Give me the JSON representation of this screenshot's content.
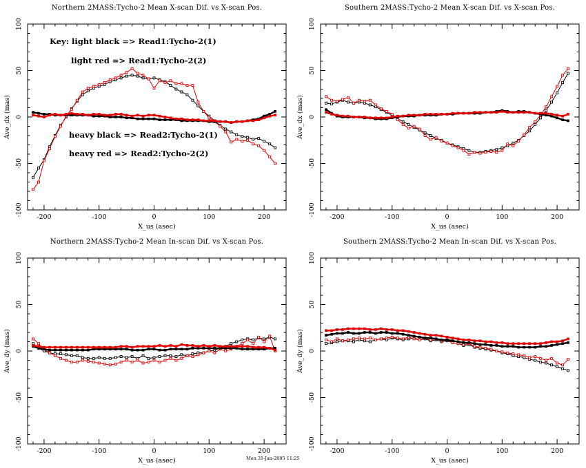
{
  "page": {
    "background": "#ffffff"
  },
  "footer": {
    "timestamp": "Mon 31-Jan-2005 11:25"
  },
  "style": {
    "black": "#000000",
    "red": "#e00000"
  },
  "chart_data": [
    {
      "type": "line",
      "title": "Northern 2MASS:Tycho-2 Mean X-scan Dif. vs X-scan Pos.",
      "xlabel": "X_us (asec)",
      "ylabel": "Ave_dx (mas)",
      "xlim": [
        -230,
        240
      ],
      "ylim": [
        -100,
        100
      ],
      "xticks": [
        -200,
        -100,
        0,
        100,
        200
      ],
      "yticks": [
        -100,
        -50,
        0,
        50,
        100
      ],
      "x_minor_step": 20,
      "y_minor_step": 10,
      "grid": false,
      "x": [
        -220,
        -210,
        -200,
        -190,
        -180,
        -170,
        -160,
        -150,
        -140,
        -130,
        -120,
        -110,
        -100,
        -90,
        -80,
        -70,
        -60,
        -50,
        -40,
        -30,
        -20,
        -10,
        0,
        10,
        20,
        30,
        40,
        50,
        60,
        70,
        80,
        90,
        100,
        110,
        120,
        130,
        140,
        150,
        160,
        170,
        180,
        190,
        200,
        210,
        220
      ],
      "series": [
        {
          "name": "Read1:Tycho-2(1)",
          "legend": "light black",
          "color": "#000000",
          "weight": "light",
          "values": [
            -65,
            -55,
            -46,
            -32,
            -20,
            -9,
            0,
            9,
            17,
            24,
            28,
            31,
            33,
            35,
            38,
            40,
            42,
            44,
            45,
            44,
            42,
            41,
            42,
            40,
            38,
            34,
            30,
            27,
            24,
            18,
            12,
            6,
            1,
            -4,
            -9,
            -13,
            -16,
            -19,
            -21,
            -22,
            -24,
            -23,
            -26,
            -29,
            -33
          ]
        },
        {
          "name": "Read1:Tycho-2(2)",
          "legend": "light red",
          "color": "#e00000",
          "weight": "light",
          "values": [
            -78,
            -70,
            -47,
            -34,
            -21,
            -10,
            1,
            8,
            18,
            27,
            31,
            33,
            35,
            37,
            40,
            42,
            45,
            48,
            52,
            47,
            45,
            41,
            31,
            39,
            37,
            39,
            36,
            36,
            34,
            34,
            16,
            6,
            -1,
            -5,
            -10,
            -16,
            -27,
            -24,
            -26,
            -25,
            -29,
            -31,
            -36,
            -43,
            -50
          ]
        },
        {
          "name": "Read2:Tycho-2(1)",
          "legend": "heavy black",
          "color": "#000000",
          "weight": "heavy",
          "values": [
            5,
            4,
            3,
            3,
            2,
            2,
            2,
            2,
            2,
            2,
            2,
            1,
            1,
            1,
            0,
            0,
            0,
            -1,
            -1,
            -2,
            -2,
            -2,
            -2,
            -3,
            -3,
            -3,
            -3,
            -4,
            -4,
            -4,
            -4,
            -4,
            -5,
            -5,
            -5,
            -5,
            -6,
            -5,
            -5,
            -4,
            -3,
            -2,
            1,
            3,
            6
          ]
        },
        {
          "name": "Read2:Tycho-2(2)",
          "legend": "heavy red",
          "color": "#e00000",
          "weight": "heavy",
          "values": [
            2,
            1,
            0,
            2,
            3,
            2,
            3,
            4,
            3,
            3,
            2,
            3,
            3,
            2,
            2,
            3,
            3,
            2,
            1,
            2,
            1,
            2,
            2,
            1,
            0,
            -1,
            -2,
            -2,
            -3,
            -3,
            -3,
            -4,
            -4,
            -4,
            -5,
            -5,
            -6,
            -5,
            -5,
            -4,
            -4,
            -3,
            -1,
            1,
            2
          ]
        }
      ],
      "key_lines": [
        {
          "text": "Key: light black => Read1:Tycho-2(1)",
          "x": 72,
          "y": 64
        },
        {
          "text": "light red => Read1:Tycho-2(2)",
          "x": 103,
          "y": 92
        },
        {
          "text": "heavy black => Read2:Tycho-2(1)",
          "x": 100,
          "y": 200
        },
        {
          "text": "heavy red => Read2:Tycho-2(2)",
          "x": 100,
          "y": 227
        }
      ]
    },
    {
      "type": "line",
      "title": "Southern 2MASS:Tycho-2 Mean X-scan Dif. vs X-scan Pos.",
      "xlabel": "X_us (asec)",
      "ylabel": "Ave_dx (mas)",
      "xlim": [
        -230,
        240
      ],
      "ylim": [
        -100,
        100
      ],
      "xticks": [
        -200,
        -100,
        0,
        100,
        200
      ],
      "yticks": [
        -100,
        -50,
        0,
        50,
        100
      ],
      "x_minor_step": 20,
      "y_minor_step": 10,
      "grid": false,
      "x": [
        -220,
        -210,
        -200,
        -190,
        -180,
        -170,
        -160,
        -150,
        -140,
        -130,
        -120,
        -110,
        -100,
        -90,
        -80,
        -70,
        -60,
        -50,
        -40,
        -30,
        -20,
        -10,
        0,
        10,
        20,
        30,
        40,
        50,
        60,
        70,
        80,
        90,
        100,
        110,
        120,
        130,
        140,
        150,
        160,
        170,
        180,
        190,
        200,
        210,
        220
      ],
      "series": [
        {
          "name": "Read1:Tycho-2(1)",
          "legend": "light black",
          "color": "#000000",
          "weight": "light",
          "values": [
            15,
            14,
            16,
            18,
            16,
            15,
            16,
            15,
            13,
            11,
            8,
            5,
            2,
            -2,
            -5,
            -8,
            -11,
            -14,
            -17,
            -20,
            -23,
            -25,
            -28,
            -30,
            -32,
            -34,
            -36,
            -38,
            -38,
            -37,
            -36,
            -35,
            -33,
            -31,
            -28,
            -25,
            -20,
            -15,
            -8,
            -1,
            7,
            16,
            26,
            37,
            47
          ]
        },
        {
          "name": "Read1:Tycho-2(2)",
          "legend": "light red",
          "color": "#e00000",
          "weight": "light",
          "values": [
            22,
            18,
            17,
            19,
            21,
            15,
            18,
            17,
            18,
            13,
            9,
            6,
            3,
            -3,
            -8,
            -12,
            -10,
            -13,
            -20,
            -24,
            -22,
            -26,
            -28,
            -31,
            -33,
            -36,
            -40,
            -38,
            -39,
            -38,
            -37,
            -38,
            -36,
            -29,
            -31,
            -26,
            -19,
            -11,
            -5,
            2,
            11,
            22,
            33,
            45,
            52
          ]
        },
        {
          "name": "Read2:Tycho-2(1)",
          "legend": "heavy black",
          "color": "#000000",
          "weight": "heavy",
          "values": [
            8,
            4,
            1,
            0,
            0,
            0,
            0,
            -1,
            -1,
            -2,
            -2,
            -2,
            -1,
            0,
            1,
            1,
            1,
            2,
            2,
            2,
            2,
            3,
            3,
            3,
            4,
            4,
            4,
            4,
            4,
            5,
            5,
            6,
            7,
            6,
            5,
            6,
            6,
            5,
            4,
            3,
            2,
            1,
            -1,
            -3,
            -4
          ]
        },
        {
          "name": "Read2:Tycho-2(2)",
          "legend": "heavy red",
          "color": "#e00000",
          "weight": "heavy",
          "values": [
            5,
            3,
            2,
            1,
            1,
            0,
            0,
            0,
            -1,
            -1,
            -1,
            -1,
            0,
            1,
            1,
            2,
            2,
            2,
            3,
            3,
            3,
            3,
            3,
            4,
            4,
            4,
            4,
            5,
            5,
            5,
            5,
            5,
            6,
            5,
            5,
            5,
            5,
            5,
            4,
            4,
            4,
            3,
            2,
            1,
            3
          ]
        }
      ]
    },
    {
      "type": "line",
      "title": "Northern 2MASS:Tycho-2 Mean In-scan Dif. vs X-scan Pos.",
      "xlabel": "X_us (asec)",
      "ylabel": "Ave_dy (mas)",
      "xlim": [
        -230,
        240
      ],
      "ylim": [
        -100,
        100
      ],
      "xticks": [
        -200,
        -100,
        0,
        100,
        200
      ],
      "yticks": [
        -100,
        -50,
        0,
        50,
        100
      ],
      "x_minor_step": 20,
      "y_minor_step": 10,
      "grid": false,
      "x": [
        -220,
        -210,
        -200,
        -190,
        -180,
        -170,
        -160,
        -150,
        -140,
        -130,
        -120,
        -110,
        -100,
        -90,
        -80,
        -70,
        -60,
        -50,
        -40,
        -30,
        -20,
        -10,
        0,
        10,
        20,
        30,
        40,
        50,
        60,
        70,
        80,
        90,
        100,
        110,
        120,
        130,
        140,
        150,
        160,
        170,
        180,
        190,
        200,
        210,
        220
      ],
      "series": [
        {
          "name": "Read1:Tycho-2(1)",
          "legend": "light black",
          "color": "#000000",
          "weight": "light",
          "values": [
            8,
            3,
            0,
            -2,
            -3,
            -3,
            -4,
            -5,
            -5,
            -7,
            -8,
            -8,
            -7,
            -8,
            -8,
            -7,
            -6,
            -7,
            -6,
            -8,
            -5,
            -8,
            -7,
            -6,
            -5,
            -5,
            -6,
            -4,
            -5,
            -3,
            -2,
            -2,
            0,
            1,
            3,
            5,
            8,
            10,
            12,
            13,
            12,
            14,
            13,
            15,
            13
          ]
        },
        {
          "name": "Read1:Tycho-2(2)",
          "legend": "light red",
          "color": "#e00000",
          "weight": "light",
          "values": [
            13,
            8,
            2,
            -2,
            -5,
            -8,
            -10,
            -12,
            -12,
            -10,
            -11,
            -12,
            -13,
            -14,
            -15,
            -14,
            -12,
            -10,
            -12,
            -10,
            -13,
            -12,
            -10,
            -12,
            -10,
            -8,
            -10,
            -8,
            -5,
            -6,
            -4,
            -2,
            0,
            -2,
            2,
            0,
            2,
            5,
            8,
            12,
            8,
            15,
            10,
            16,
            0
          ]
        },
        {
          "name": "Read2:Tycho-2(1)",
          "legend": "heavy black",
          "color": "#000000",
          "weight": "heavy",
          "values": [
            5,
            3,
            2,
            1,
            1,
            1,
            1,
            1,
            1,
            1,
            1,
            2,
            2,
            2,
            2,
            2,
            2,
            2,
            1,
            1,
            1,
            2,
            2,
            1,
            1,
            2,
            2,
            2,
            2,
            3,
            3,
            3,
            3,
            3,
            3,
            3,
            3,
            3,
            2,
            2,
            2,
            2,
            2,
            3,
            3
          ]
        },
        {
          "name": "Read2:Tycho-2(2)",
          "legend": "heavy red",
          "color": "#e00000",
          "weight": "heavy",
          "values": [
            6,
            5,
            4,
            4,
            4,
            4,
            4,
            4,
            4,
            4,
            4,
            4,
            4,
            4,
            4,
            4,
            5,
            5,
            4,
            5,
            5,
            5,
            5,
            6,
            5,
            6,
            5,
            7,
            6,
            6,
            5,
            6,
            5,
            6,
            5,
            5,
            5,
            5,
            5,
            5,
            4,
            4,
            4,
            3,
            1
          ]
        }
      ]
    },
    {
      "type": "line",
      "title": "Southern 2MASS:Tycho-2 Mean In-scan Dif. vs X-scan Pos.",
      "xlabel": "X_us (asec)",
      "ylabel": "Ave_dy (mas)",
      "xlim": [
        -230,
        240
      ],
      "ylim": [
        -100,
        100
      ],
      "xticks": [
        -200,
        -100,
        0,
        100,
        200
      ],
      "yticks": [
        -100,
        -50,
        0,
        50,
        100
      ],
      "x_minor_step": 20,
      "y_minor_step": 10,
      "grid": false,
      "x": [
        -220,
        -210,
        -200,
        -190,
        -180,
        -170,
        -160,
        -150,
        -140,
        -130,
        -120,
        -110,
        -100,
        -90,
        -80,
        -70,
        -60,
        -50,
        -40,
        -30,
        -20,
        -10,
        0,
        10,
        20,
        30,
        40,
        50,
        60,
        70,
        80,
        90,
        100,
        110,
        120,
        130,
        140,
        150,
        160,
        170,
        180,
        190,
        200,
        210,
        220
      ],
      "series": [
        {
          "name": "Read1:Tycho-2(1)",
          "legend": "light black",
          "color": "#000000",
          "weight": "light",
          "values": [
            8,
            9,
            10,
            11,
            11,
            10,
            12,
            11,
            10,
            12,
            13,
            12,
            14,
            13,
            12,
            13,
            14,
            12,
            13,
            11,
            12,
            10,
            11,
            9,
            8,
            6,
            7,
            4,
            3,
            2,
            1,
            0,
            -2,
            -3,
            -5,
            -6,
            -7,
            -9,
            -10,
            -12,
            -13,
            -15,
            -17,
            -19,
            -21
          ]
        },
        {
          "name": "Read1:Tycho-2(2)",
          "legend": "light red",
          "color": "#e00000",
          "weight": "light",
          "values": [
            12,
            10,
            13,
            11,
            12,
            13,
            14,
            13,
            14,
            12,
            13,
            14,
            15,
            14,
            13,
            15,
            13,
            12,
            14,
            12,
            13,
            11,
            12,
            9,
            8,
            7,
            8,
            5,
            4,
            3,
            2,
            0,
            -1,
            -2,
            -3,
            -4,
            -5,
            -7,
            -6,
            -8,
            -10,
            -8,
            -13,
            -15,
            -9
          ]
        },
        {
          "name": "Read2:Tycho-2(1)",
          "legend": "heavy black",
          "color": "#000000",
          "weight": "heavy",
          "values": [
            17,
            18,
            19,
            19,
            20,
            19,
            19,
            20,
            20,
            19,
            20,
            20,
            19,
            19,
            18,
            17,
            16,
            15,
            14,
            14,
            13,
            12,
            12,
            11,
            10,
            9,
            9,
            8,
            7,
            7,
            6,
            6,
            5,
            5,
            5,
            4,
            4,
            4,
            4,
            5,
            5,
            6,
            7,
            8,
            9
          ]
        },
        {
          "name": "Read2:Tycho-2(2)",
          "legend": "heavy red",
          "color": "#e00000",
          "weight": "heavy",
          "values": [
            22,
            22,
            23,
            23,
            24,
            24,
            24,
            24,
            23,
            23,
            24,
            23,
            23,
            22,
            22,
            21,
            20,
            19,
            18,
            17,
            17,
            16,
            15,
            14,
            13,
            12,
            12,
            11,
            11,
            10,
            10,
            9,
            9,
            8,
            8,
            8,
            8,
            8,
            8,
            8,
            9,
            10,
            10,
            11,
            13
          ]
        }
      ]
    }
  ]
}
